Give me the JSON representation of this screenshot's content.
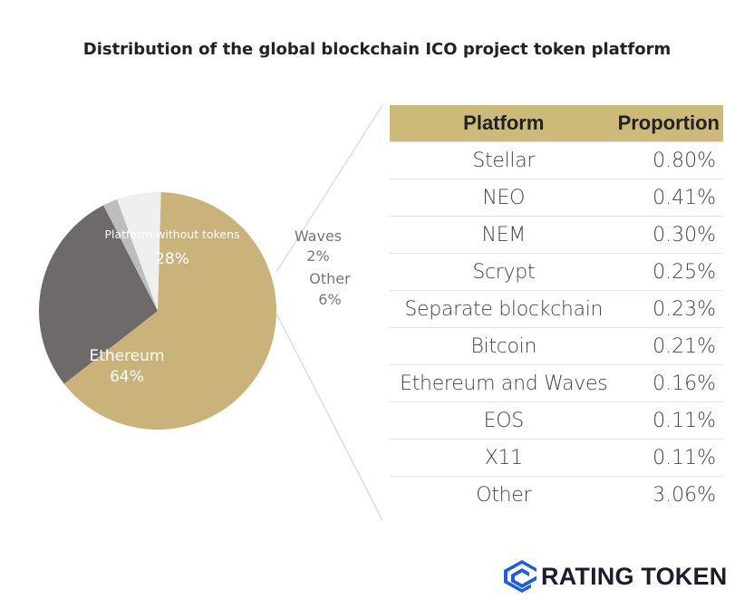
{
  "chart_data": [
    {
      "type": "pie",
      "title": "Distribution of the global blockchain ICO project token platform",
      "slices": [
        {
          "label": "Ethereum",
          "value": 64,
          "display": "64%",
          "color": "#c9b37a"
        },
        {
          "label": "Platform without tokens",
          "value": 28,
          "display": "28%",
          "color": "#6e6a69"
        },
        {
          "label": "Waves",
          "value": 2,
          "display": "2%",
          "color": "#bdbdbd"
        },
        {
          "label": "Other",
          "value": 6,
          "display": "6%",
          "color": "#efefef"
        }
      ]
    },
    {
      "type": "table",
      "columns": [
        "Platform",
        "Proportion"
      ],
      "rows": [
        [
          "Stellar",
          "0.80%"
        ],
        [
          "NEO",
          "0.41%"
        ],
        [
          "NEM",
          "0.30%"
        ],
        [
          "Scrypt",
          "0.25%"
        ],
        [
          "Separate blockchain",
          "0.23%"
        ],
        [
          "Bitcoin",
          "0.21%"
        ],
        [
          "Ethereum and Waves",
          "0.16%"
        ],
        [
          "EOS",
          "0.11%"
        ],
        [
          "X11",
          "0.11%"
        ],
        [
          "Other",
          "3.06%"
        ]
      ]
    }
  ],
  "brand": {
    "name": "RATING TOKEN",
    "color": "#1f5fd4"
  }
}
